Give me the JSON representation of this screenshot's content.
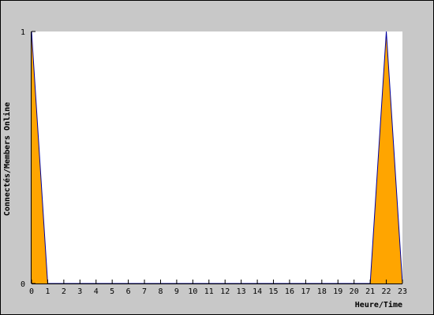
{
  "chart_data": {
    "type": "area",
    "title": "",
    "xlabel": "Heure/Time",
    "ylabel": "Connectés/Members Online",
    "x": [
      0,
      1,
      2,
      3,
      4,
      5,
      6,
      7,
      8,
      9,
      10,
      11,
      12,
      13,
      14,
      15,
      16,
      17,
      18,
      19,
      20,
      21,
      22,
      23
    ],
    "series": [
      {
        "values": [
          1,
          0,
          0,
          0,
          0,
          0,
          0,
          0,
          0,
          0,
          0,
          0,
          0,
          0,
          0,
          0,
          0,
          0,
          0,
          0,
          0,
          0,
          1,
          0
        ]
      }
    ],
    "xticks": [
      "0",
      "1",
      "2",
      "3",
      "4",
      "5",
      "6",
      "7",
      "8",
      "9",
      "10",
      "11",
      "12",
      "13",
      "14",
      "15",
      "16",
      "17",
      "18",
      "19",
      "20",
      "21",
      "22",
      "23"
    ],
    "yticks": [
      "0",
      "1"
    ],
    "xlim": [
      0,
      23
    ],
    "ylim": [
      0,
      1
    ],
    "grid": false,
    "colors": {
      "background": "#c8c8c8",
      "plot_background": "#ffffff",
      "fill": "#ffa500",
      "line": "#0000a0",
      "border": "#000000"
    }
  }
}
